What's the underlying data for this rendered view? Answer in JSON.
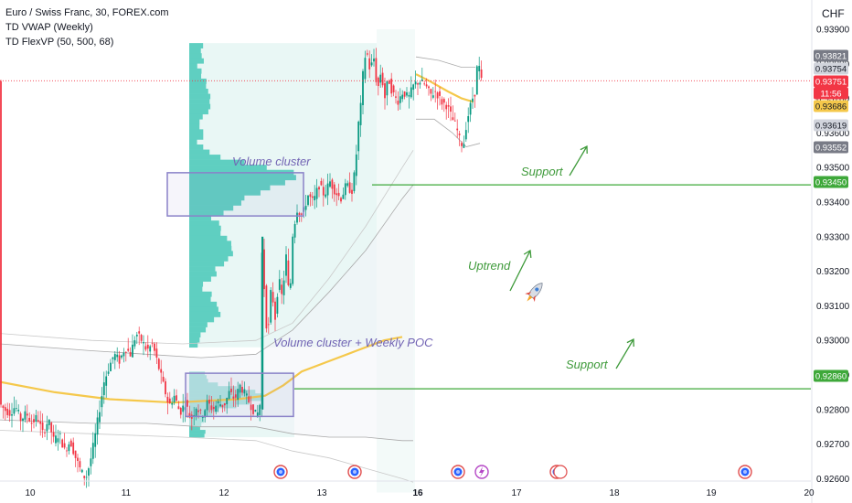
{
  "legend": {
    "line1": "Euro / Swiss Franc, 30, FOREX.com",
    "line2": "TD VWAP (Weekly)",
    "line3": "TD FlexVP (50, 500, 68)"
  },
  "currency": "CHF",
  "colors": {
    "up": "#089981",
    "down": "#f23645",
    "profile": "#5fcfc1",
    "vwap": "#f5c84b",
    "band": "#aaaaaa",
    "support": "#3ea83a",
    "box": "#8a82c8",
    "annot_purple": "#7264b4",
    "annot_green": "#3e9a3a"
  },
  "chart_data": {
    "type": "candlestick",
    "title": "Euro / Swiss Franc, 30, FOREX.com",
    "x_ticks": [
      "10",
      "11",
      "12",
      "13",
      "16",
      "17",
      "18",
      "19",
      "20"
    ],
    "y_ticks": [
      "0.93900",
      "0.93800",
      "0.93700",
      "0.93600",
      "0.93500",
      "0.93400",
      "0.93300",
      "0.93200",
      "0.93100",
      "0.93000",
      "0.92900",
      "0.92800",
      "0.92700",
      "0.92600"
    ],
    "ylim": [
      0.9256,
      0.9398
    ],
    "price_badges": [
      {
        "label": "0.93821",
        "bg": "#787b86",
        "fg": "#ffffff"
      },
      {
        "label": "0.93754",
        "bg": "#d1d4dc",
        "fg": "#131722"
      },
      {
        "label": "0.93751",
        "bg": "#f23645",
        "fg": "#ffffff"
      },
      {
        "label": "11:56",
        "bg": "#f23645",
        "fg": "#ffffff"
      },
      {
        "label": "0.93686",
        "bg": "#f5c84b",
        "fg": "#131722"
      },
      {
        "label": "0.93619",
        "bg": "#d1d4dc",
        "fg": "#131722"
      },
      {
        "label": "0.93552",
        "bg": "#787b86",
        "fg": "#ffffff"
      },
      {
        "label": "0.93450",
        "bg": "#3ea83a",
        "fg": "#ffffff"
      },
      {
        "label": "0.92860",
        "bg": "#3ea83a",
        "fg": "#ffffff"
      }
    ],
    "last_price": 0.93751,
    "support_levels": [
      0.9345,
      0.9286
    ],
    "price_path": [
      [
        0,
        0.9282
      ],
      [
        6,
        0.928
      ],
      [
        12,
        0.9279
      ],
      [
        18,
        0.9281
      ],
      [
        24,
        0.9277
      ],
      [
        30,
        0.9279
      ],
      [
        36,
        0.9276
      ],
      [
        42,
        0.9278
      ],
      [
        48,
        0.9273
      ],
      [
        54,
        0.9277
      ],
      [
        60,
        0.9271
      ],
      [
        66,
        0.9273
      ],
      [
        72,
        0.9268
      ],
      [
        78,
        0.9271
      ],
      [
        84,
        0.9266
      ],
      [
        90,
        0.9262
      ],
      [
        95,
        0.926
      ],
      [
        100,
        0.9265
      ],
      [
        105,
        0.9272
      ],
      [
        110,
        0.928
      ],
      [
        115,
        0.9288
      ],
      [
        120,
        0.9292
      ],
      [
        126,
        0.9296
      ],
      [
        132,
        0.9294
      ],
      [
        138,
        0.9298
      ],
      [
        144,
        0.9296
      ],
      [
        150,
        0.9302
      ],
      [
        156,
        0.93
      ],
      [
        162,
        0.9297
      ],
      [
        168,
        0.9299
      ],
      [
        174,
        0.9293
      ],
      [
        180,
        0.9287
      ],
      [
        186,
        0.9281
      ],
      [
        192,
        0.9284
      ],
      [
        198,
        0.9279
      ],
      [
        204,
        0.9282
      ],
      [
        210,
        0.9277
      ],
      [
        216,
        0.9281
      ],
      [
        222,
        0.9278
      ],
      [
        228,
        0.9282
      ],
      [
        234,
        0.928
      ],
      [
        240,
        0.9282
      ],
      [
        246,
        0.9281
      ],
      [
        252,
        0.9285
      ],
      [
        258,
        0.9283
      ],
      [
        264,
        0.9287
      ],
      [
        270,
        0.9284
      ],
      [
        276,
        0.9281
      ],
      [
        282,
        0.9278
      ],
      [
        286,
        0.9282
      ],
      [
        288,
        0.933
      ],
      [
        291,
        0.931
      ],
      [
        294,
        0.93
      ],
      [
        298,
        0.9316
      ],
      [
        302,
        0.9306
      ],
      [
        306,
        0.9318
      ],
      [
        310,
        0.9312
      ],
      [
        314,
        0.9325
      ],
      [
        318,
        0.931
      ],
      [
        321,
        0.933
      ],
      [
        326,
        0.9338
      ],
      [
        332,
        0.9336
      ],
      [
        338,
        0.9342
      ],
      [
        344,
        0.934
      ],
      [
        350,
        0.9345
      ],
      [
        356,
        0.9342
      ],
      [
        362,
        0.9346
      ],
      [
        368,
        0.9343
      ],
      [
        374,
        0.9341
      ],
      [
        380,
        0.9345
      ],
      [
        386,
        0.9343
      ],
      [
        390,
        0.935
      ],
      [
        393,
        0.9362
      ],
      [
        396,
        0.9368
      ],
      [
        399,
        0.938
      ],
      [
        402,
        0.9384
      ],
      [
        406,
        0.9378
      ],
      [
        410,
        0.9382
      ],
      [
        414,
        0.9372
      ],
      [
        418,
        0.9378
      ],
      [
        422,
        0.937
      ],
      [
        426,
        0.9376
      ],
      [
        430,
        0.9372
      ],
      [
        436,
        0.9369
      ],
      [
        442,
        0.9372
      ],
      [
        448,
        0.937
      ],
      [
        454,
        0.9374
      ],
      [
        460,
        0.9375
      ],
      [
        466,
        0.9374
      ],
      [
        472,
        0.9371
      ],
      [
        478,
        0.9372
      ],
      [
        484,
        0.9369
      ],
      [
        490,
        0.9368
      ],
      [
        496,
        0.9364
      ],
      [
        500,
        0.9362
      ],
      [
        504,
        0.9358
      ],
      [
        508,
        0.9356
      ],
      [
        511,
        0.9362
      ],
      [
        514,
        0.9366
      ],
      [
        518,
        0.937
      ],
      [
        521,
        0.9372
      ],
      [
        524,
        0.9382
      ],
      [
        527,
        0.9375
      ]
    ],
    "vwap": [
      [
        0,
        0.9288
      ],
      [
        60,
        0.9285
      ],
      [
        120,
        0.9283
      ],
      [
        190,
        0.9282
      ],
      [
        260,
        0.9283
      ],
      [
        290,
        0.9284
      ],
      [
        310,
        0.9287
      ],
      [
        330,
        0.9291
      ],
      [
        360,
        0.9294
      ],
      [
        390,
        0.9297
      ],
      [
        420,
        0.93
      ],
      [
        440,
        0.9301
      ]
    ],
    "vwap_week2": [
      [
        455,
        0.9377
      ],
      [
        470,
        0.9375
      ],
      [
        490,
        0.9372
      ],
      [
        505,
        0.937
      ],
      [
        518,
        0.9369
      ]
    ],
    "band_upper": [
      [
        0,
        0.9299
      ],
      [
        100,
        0.9297
      ],
      [
        160,
        0.9296
      ],
      [
        220,
        0.9295
      ],
      [
        280,
        0.9296
      ],
      [
        320,
        0.9303
      ],
      [
        360,
        0.9314
      ],
      [
        400,
        0.9326
      ],
      [
        440,
        0.9341
      ],
      [
        452,
        0.9345
      ]
    ],
    "band_lower": [
      [
        0,
        0.9277
      ],
      [
        100,
        0.9276
      ],
      [
        160,
        0.9276
      ],
      [
        220,
        0.9275
      ],
      [
        280,
        0.9275
      ],
      [
        320,
        0.9273
      ],
      [
        360,
        0.9272
      ],
      [
        400,
        0.9272
      ],
      [
        440,
        0.9271
      ],
      [
        452,
        0.9271
      ]
    ],
    "band2_upper": [
      [
        0,
        0.9302
      ],
      [
        100,
        0.93
      ],
      [
        200,
        0.9299
      ],
      [
        280,
        0.93
      ],
      [
        320,
        0.9305
      ],
      [
        360,
        0.9318
      ],
      [
        400,
        0.9333
      ],
      [
        440,
        0.935
      ],
      [
        452,
        0.9355
      ]
    ],
    "band2_lower": [
      [
        0,
        0.9274
      ],
      [
        100,
        0.9273
      ],
      [
        200,
        0.9272
      ],
      [
        280,
        0.9271
      ],
      [
        320,
        0.9268
      ],
      [
        360,
        0.9266
      ],
      [
        400,
        0.9263
      ],
      [
        440,
        0.926
      ],
      [
        452,
        0.9259
      ]
    ],
    "week2_upper": [
      [
        455,
        0.9382
      ],
      [
        480,
        0.9381
      ],
      [
        505,
        0.9379
      ],
      [
        520,
        0.9379
      ]
    ],
    "week2_lower": [
      [
        455,
        0.9364
      ],
      [
        475,
        0.9364
      ],
      [
        495,
        0.936
      ],
      [
        510,
        0.9356
      ],
      [
        525,
        0.9357
      ]
    ],
    "volume_profiles": [
      {
        "name": "profile-1",
        "price_top": 0.9386,
        "price_bottom": 0.9298
      },
      {
        "name": "profile-2",
        "price_top": 0.9291,
        "price_bottom": 0.9272
      }
    ]
  },
  "annotations": {
    "volume_cluster": "Volume cluster",
    "volume_cluster_poc": "Volume cluster + Weekly POC",
    "uptrend": "Uptrend",
    "support_top": "Support",
    "support_bottom": "Support"
  }
}
